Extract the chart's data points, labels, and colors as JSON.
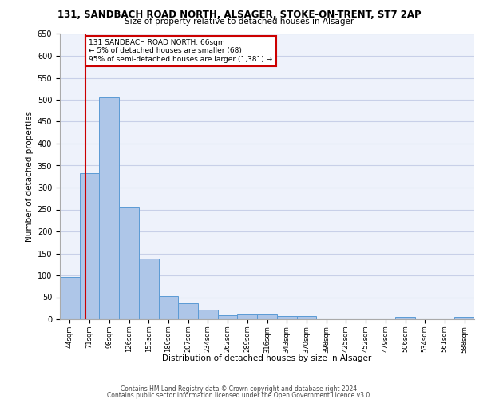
{
  "title_line1": "131, SANDBACH ROAD NORTH, ALSAGER, STOKE-ON-TRENT, ST7 2AP",
  "title_line2": "Size of property relative to detached houses in Alsager",
  "xlabel": "Distribution of detached houses by size in Alsager",
  "ylabel": "Number of detached properties",
  "categories": [
    "44sqm",
    "71sqm",
    "98sqm",
    "126sqm",
    "153sqm",
    "180sqm",
    "207sqm",
    "234sqm",
    "262sqm",
    "289sqm",
    "316sqm",
    "343sqm",
    "370sqm",
    "398sqm",
    "425sqm",
    "452sqm",
    "479sqm",
    "506sqm",
    "534sqm",
    "561sqm",
    "588sqm"
  ],
  "values": [
    97,
    333,
    505,
    255,
    138,
    53,
    37,
    21,
    9,
    11,
    11,
    8,
    7,
    0,
    0,
    0,
    0,
    5,
    0,
    0,
    6
  ],
  "bar_color": "#aec6e8",
  "bar_edge_color": "#5b9bd5",
  "annotation_line1": "131 SANDBACH ROAD NORTH: 66sqm",
  "annotation_line2": "← 5% of detached houses are smaller (68)",
  "annotation_line3": "95% of semi-detached houses are larger (1,381) →",
  "vline_color": "#cc0000",
  "annotation_box_color": "#cc0000",
  "background_color": "#eef2fb",
  "grid_color": "#c8d0e8",
  "footer_line1": "Contains HM Land Registry data © Crown copyright and database right 2024.",
  "footer_line2": "Contains public sector information licensed under the Open Government Licence v3.0.",
  "ylim": [
    0,
    650
  ],
  "yticks": [
    0,
    50,
    100,
    150,
    200,
    250,
    300,
    350,
    400,
    450,
    500,
    550,
    600,
    650
  ]
}
